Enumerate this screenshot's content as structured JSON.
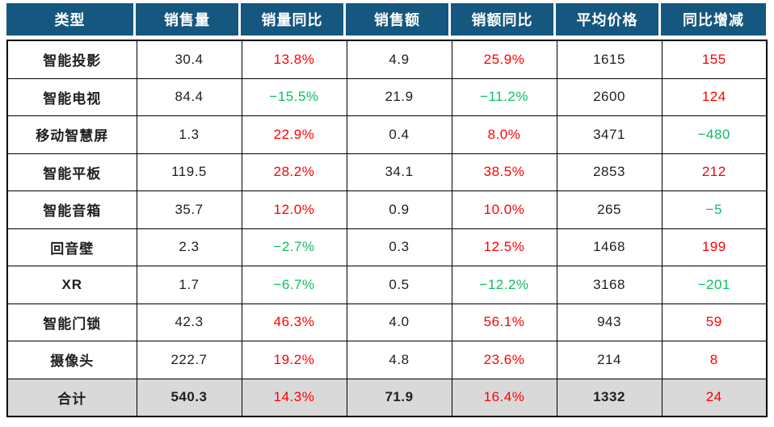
{
  "colors": {
    "header_bg": "#15577E",
    "header_text": "#ffffff",
    "positive_red": "#ff0000",
    "negative_green": "#0cbe62",
    "total_row_bg": "#d9d9d9",
    "grid_border": "#000000"
  },
  "table": {
    "headers": [
      "类型",
      "销售量",
      "销量同比",
      "销售额",
      "销额同比",
      "平均价格",
      "同比增减"
    ],
    "rows": [
      {
        "label": "智能投影",
        "values": [
          "30.4",
          "13.8%",
          "4.9",
          "25.9%",
          "1615",
          "155"
        ],
        "colors": [
          "k",
          "r",
          "k",
          "r",
          "k",
          "r"
        ]
      },
      {
        "label": "智能电视",
        "values": [
          "84.4",
          "−15.5%",
          "21.9",
          "−11.2%",
          "2600",
          "124"
        ],
        "colors": [
          "k",
          "g",
          "k",
          "g",
          "k",
          "r"
        ]
      },
      {
        "label": "移动智慧屏",
        "values": [
          "1.3",
          "22.9%",
          "0.4",
          "8.0%",
          "3471",
          "−480"
        ],
        "colors": [
          "k",
          "r",
          "k",
          "r",
          "k",
          "g"
        ]
      },
      {
        "label": "智能平板",
        "values": [
          "119.5",
          "28.2%",
          "34.1",
          "38.5%",
          "2853",
          "212"
        ],
        "colors": [
          "k",
          "r",
          "k",
          "r",
          "k",
          "r"
        ]
      },
      {
        "label": "智能音箱",
        "values": [
          "35.7",
          "12.0%",
          "0.9",
          "10.0%",
          "265",
          "−5"
        ],
        "colors": [
          "k",
          "r",
          "k",
          "r",
          "k",
          "g"
        ]
      },
      {
        "label": "回音壁",
        "values": [
          "2.3",
          "−2.7%",
          "0.3",
          "12.5%",
          "1468",
          "199"
        ],
        "colors": [
          "k",
          "g",
          "k",
          "r",
          "k",
          "r"
        ]
      },
      {
        "label": "XR",
        "values": [
          "1.7",
          "−6.7%",
          "0.5",
          "−12.2%",
          "3168",
          "−201"
        ],
        "colors": [
          "k",
          "g",
          "k",
          "g",
          "k",
          "g"
        ]
      },
      {
        "label": "智能门锁",
        "values": [
          "42.3",
          "46.3%",
          "4.0",
          "56.1%",
          "943",
          "59"
        ],
        "colors": [
          "k",
          "r",
          "k",
          "r",
          "k",
          "r"
        ]
      },
      {
        "label": "摄像头",
        "values": [
          "222.7",
          "19.2%",
          "4.8",
          "23.6%",
          "214",
          "8"
        ],
        "colors": [
          "k",
          "r",
          "k",
          "r",
          "k",
          "r"
        ]
      },
      {
        "label": "合计",
        "values": [
          "540.3",
          "14.3%",
          "71.9",
          "16.4%",
          "1332",
          "24"
        ],
        "colors": [
          "k",
          "r",
          "k",
          "r",
          "k",
          "r"
        ]
      }
    ]
  },
  "chart_data": {
    "type": "table",
    "columns": [
      "类型",
      "销售量",
      "销量同比",
      "销售额",
      "销额同比",
      "平均价格",
      "同比增减"
    ],
    "rows": [
      [
        "智能投影",
        30.4,
        "13.8%",
        4.9,
        "25.9%",
        1615,
        155
      ],
      [
        "智能电视",
        84.4,
        "-15.5%",
        21.9,
        "-11.2%",
        2600,
        124
      ],
      [
        "移动智慧屏",
        1.3,
        "22.9%",
        0.4,
        "8.0%",
        3471,
        -480
      ],
      [
        "智能平板",
        119.5,
        "28.2%",
        34.1,
        "38.5%",
        2853,
        212
      ],
      [
        "智能音箱",
        35.7,
        "12.0%",
        0.9,
        "10.0%",
        265,
        -5
      ],
      [
        "回音壁",
        2.3,
        "-2.7%",
        0.3,
        "12.5%",
        1468,
        199
      ],
      [
        "XR",
        1.7,
        "-6.7%",
        0.5,
        "-12.2%",
        3168,
        -201
      ],
      [
        "智能门锁",
        42.3,
        "46.3%",
        4.0,
        "56.1%",
        943,
        59
      ],
      [
        "摄像头",
        222.7,
        "19.2%",
        4.8,
        "23.6%",
        214,
        8
      ],
      [
        "合计",
        540.3,
        "14.3%",
        71.9,
        "16.4%",
        1332,
        24
      ]
    ],
    "notes": "red = increase, green = decrease; last row is totals with gray background"
  }
}
